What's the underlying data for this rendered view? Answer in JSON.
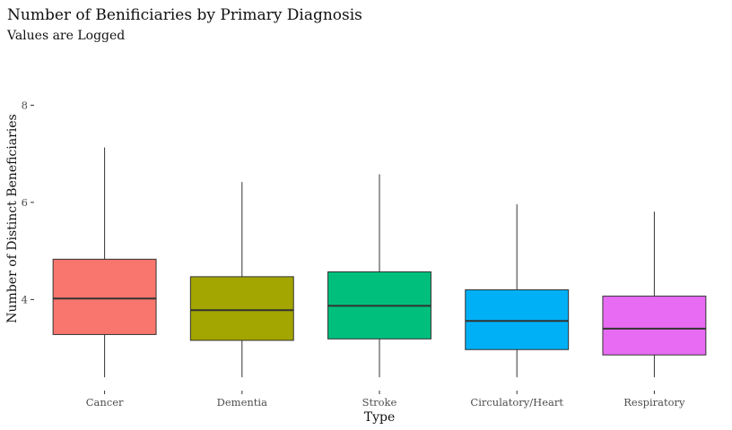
{
  "chart_data": {
    "type": "boxplot",
    "title": "Number of Benificiaries by Primary Diagnosis",
    "subtitle": "Values are Logged",
    "xlabel": "Type",
    "ylabel": "Number of Distinct Beneficiaries",
    "ylim": [
      2.2,
      8.1
    ],
    "yticks": [
      4,
      6,
      8
    ],
    "grid": false,
    "legend": "none",
    "categories": [
      "Cancer",
      "Dementia",
      "Stroke",
      "Circulatory/Heart",
      "Respiratory"
    ],
    "boxes": [
      {
        "category": "Cancer",
        "min": 2.4,
        "q1": 3.28,
        "median": 4.02,
        "q3": 4.83,
        "max": 7.13,
        "color": "#F8766D"
      },
      {
        "category": "Dementia",
        "min": 2.4,
        "q1": 3.16,
        "median": 3.78,
        "q3": 4.47,
        "max": 6.42,
        "color": "#A3A500"
      },
      {
        "category": "Stroke",
        "min": 2.4,
        "q1": 3.19,
        "median": 3.87,
        "q3": 4.57,
        "max": 6.58,
        "color": "#00BF7D"
      },
      {
        "category": "Circulatory/Heart",
        "min": 2.4,
        "q1": 2.97,
        "median": 3.56,
        "q3": 4.2,
        "max": 5.96,
        "color": "#00B0F6"
      },
      {
        "category": "Respiratory",
        "min": 2.4,
        "q1": 2.86,
        "median": 3.4,
        "q3": 4.07,
        "max": 5.81,
        "color": "#E76BF3"
      }
    ]
  }
}
